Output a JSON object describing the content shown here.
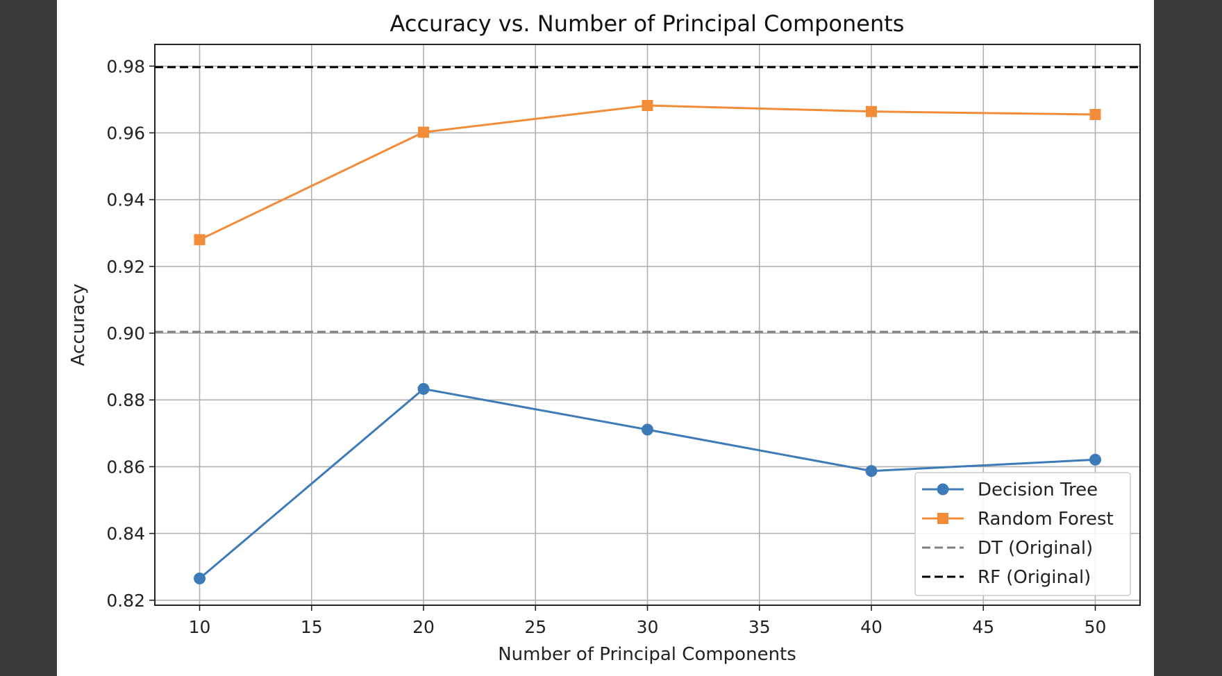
{
  "chart_data": {
    "type": "line",
    "title": "Accuracy vs. Number of Principal Components",
    "xlabel": "Number of Principal Components",
    "ylabel": "Accuracy",
    "x": [
      10,
      20,
      30,
      40,
      50
    ],
    "xticks": [
      10,
      15,
      20,
      25,
      30,
      35,
      40,
      45,
      50
    ],
    "yticks": [
      0.82,
      0.84,
      0.86,
      0.88,
      0.9,
      0.92,
      0.94,
      0.96,
      0.98
    ],
    "xlim": [
      8,
      52
    ],
    "ylim": [
      0.8185,
      0.9865
    ],
    "grid": true,
    "legend_position": "lower-right",
    "series": [
      {
        "name": "Decision Tree",
        "values": [
          0.8265,
          0.8833,
          0.8711,
          0.8587,
          0.8621
        ],
        "color": "#3d7ab8",
        "marker": "circle"
      },
      {
        "name": "Random Forest",
        "values": [
          0.928,
          0.9602,
          0.9682,
          0.9664,
          0.9655
        ],
        "color": "#f28c38",
        "marker": "square"
      }
    ],
    "reference_lines": [
      {
        "name": "DT (Original)",
        "y": 0.9004,
        "color": "#808080",
        "style": "dashed"
      },
      {
        "name": "RF (Original)",
        "y": 0.9797,
        "color": "#000000",
        "style": "dashed"
      }
    ]
  }
}
